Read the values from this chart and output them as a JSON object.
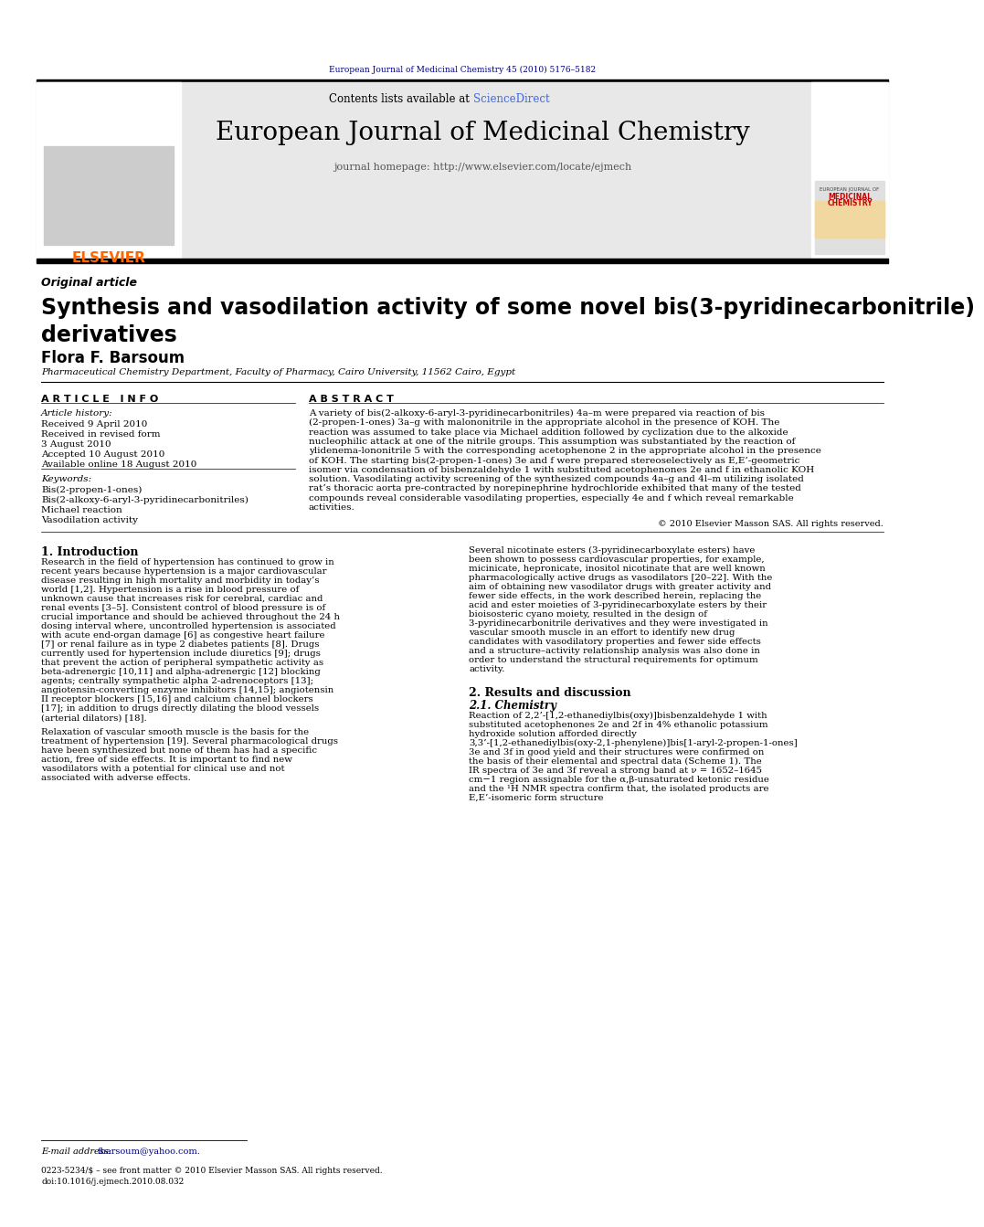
{
  "page_bg": "#ffffff",
  "top_journal_ref": "European Journal of Medicinal Chemistry 45 (2010) 5176–5182",
  "top_ref_color": "#000080",
  "header_bg": "#e8e8e8",
  "header_sciencedirect_color": "#4169e1",
  "header_journal_title": "European Journal of Medicinal Chemistry",
  "header_homepage": "journal homepage: http://www.elsevier.com/locate/ejmech",
  "elsevier_color": "#ff6600",
  "article_type": "Original article",
  "paper_title": "Synthesis and vasodilation activity of some novel bis(3-pyridinecarbonitrile)\nderivatives",
  "author": "Flora F. Barsoum",
  "affiliation": "Pharmaceutical Chemistry Department, Faculty of Pharmacy, Cairo University, 11562 Cairo, Egypt",
  "article_info_header": "A R T I C L E   I N F O",
  "article_history_label": "Article history:",
  "received_date": "Received 9 April 2010",
  "revised_date": "Received in revised form",
  "revised_date2": "3 August 2010",
  "accepted_date": "Accepted 10 August 2010",
  "online_date": "Available online 18 August 2010",
  "keywords_label": "Keywords:",
  "keyword1": "Bis(2-propen-1-ones)",
  "keyword2": "Bis(2-alkoxy-6-aryl-3-pyridinecarbonitriles)",
  "keyword3": "Michael reaction",
  "keyword4": "Vasodilation activity",
  "abstract_header": "A B S T R A C T",
  "abstract_text": "A variety of bis(2-alkoxy-6-aryl-3-pyridinecarbonitriles) 4a–m were prepared via reaction of bis (2-propen-1-ones) 3a–g with malononitrile in the appropriate alcohol in the presence of KOH. The reaction was assumed to take place via Michael addition followed by cyclization due to the alkoxide nucleophilic attack at one of the nitrile groups. This assumption was substantiated by the reaction of ylidenema­lononitrile 5 with the corresponding acetophenone 2 in the appropriate alcohol in the presence of KOH. The starting bis(2-propen-1-ones) 3e and f were prepared stereoselectively as E,E’-geometric isomer via condensation of bisbenzaldehyde 1 with substituted acetophenones 2e and f in ethanolic KOH solution. Vasodilating activity screening of the synthesized compounds 4a–g and 4l–m utilizing isolated rat’s thoracic aorta pre-contracted by norepinephrine hydrochloride exhibited that many of the tested compounds reveal considerable vasodilating properties, especially 4e and f which reveal remarkable activities.",
  "copyright": "© 2010 Elsevier Masson SAS. All rights reserved.",
  "intro_header": "1. Introduction",
  "intro_text1": "Research in the field of hypertension has continued to grow in recent years because hypertension is a major cardiovascular disease resulting in high mortality and morbidity in today’s world [1,2]. Hypertension is a rise in blood pressure of unknown cause that increases risk for cerebral, cardiac and renal events [3–5]. Consistent control of blood pressure is of crucial importance and should be achieved throughout the 24 h dosing interval where, uncontrolled hypertension is associated with acute end-organ damage [6] as congestive heart failure [7] or renal failure as in type 2 diabetes patients [8]. Drugs currently used for hypertension include diuretics [9]; drugs that prevent the action of peripheral sympathetic activity as beta-adrenergic [10,11] and alpha-adrenergic [12] blocking agents; centrally sympathetic alpha 2-adrenoceptors [13]; angiotensin-converting enzyme inhibitors [14,15]; angiotensin II receptor blockers [15,16] and calcium channel blockers [17]; in addition to drugs directly dilating the blood vessels (arterial dilators) [18].",
  "intro_text2": "Relaxation of vascular smooth muscle is the basis for the treatment of hypertension [19]. Several pharmacological drugs have been synthesized but none of them has had a specific action, free of side effects. It is important to find new vasodilators with a potential for clinical use and not associated with adverse effects.",
  "right_col_text1": "Several nicotinate esters (3-pyridinecarboxylate esters) have been shown to possess cardiovascular properties, for example, micinicate, hepronicate, inositol nicotinate that are well known pharmacologically active drugs as vasodilators [20–22]. With the aim of obtaining new vasodilator drugs with greater activity and fewer side effects, in the work described herein, replacing the acid and ester moieties of 3-pyridinecarboxylate esters by their bioisosteric cyano moiety, resulted in the design of 3-pyridinecarbonitrile derivatives and they were investigated in vascular smooth muscle in an effort to identify new drug candidates with vasodilatory properties and fewer side effects and a structure–activity relationship analysis was also done in order to understand the structural requirements for optimum activity.",
  "results_header": "2. Results and discussion",
  "chemistry_header": "2.1. Chemistry",
  "results_text": "Reaction of 2,2’-[1,2-ethanediylbis(oxy)]bisbenzaldehyde 1 with substituted acetophenones 2e and 2f in 4% ethanolic potassium hydroxide solution afforded directly 3,3’-[1,2-ethanediylbis(oxy-2,1-phenylene)]bis[1-aryl-2-propen-1-ones] 3e and 3f in good yield and their structures were confirmed on the basis of their elemental and spectral data (Scheme 1). The IR spectra of 3e and 3f reveal a strong band at ν = 1652–1645 cm−1 region assignable for the α,β-unsaturated ketonic residue and the ¹H NMR spectra confirm that, the isolated products are E,E’-isomeric form structure",
  "email_label": "E-mail address:",
  "email": "fbarsoum@yahoo.com.",
  "footnote1": "0223-5234/$ – see front matter © 2010 Elsevier Masson SAS. All rights reserved.",
  "footnote2": "doi:10.1016/j.ejmech.2010.08.032"
}
